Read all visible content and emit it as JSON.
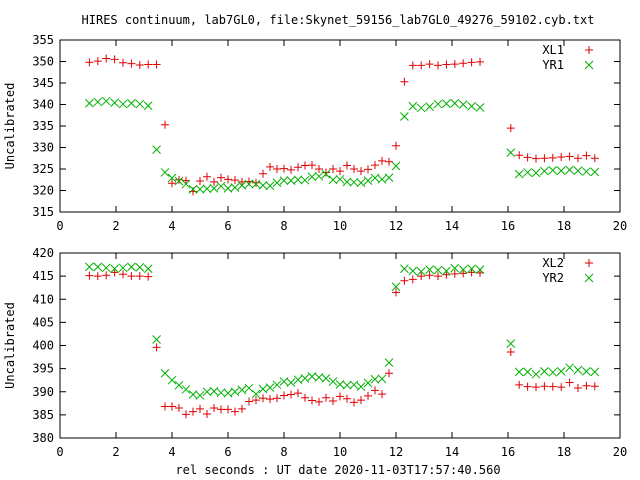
{
  "title": "HIRES continuum, lab7GL0, file:Skynet_59156_lab7GL0_49276_59102.cyb.txt",
  "xlabel": "rel seconds : UT date 2020-11-03T17:57:40.560",
  "colors": {
    "red": "#e00000",
    "green": "#00b000",
    "axis": "#000000",
    "grid": "#a0a0a0"
  },
  "chart_data": [
    {
      "type": "scatter",
      "ylabel": "Uncalibrated",
      "xlim": [
        0,
        20
      ],
      "ylim": [
        315,
        355
      ],
      "xticks": [
        0,
        2,
        4,
        6,
        8,
        10,
        12,
        14,
        16,
        18,
        20
      ],
      "yticks": [
        315,
        320,
        325,
        330,
        335,
        340,
        345,
        350,
        355
      ],
      "legend_position": "top-right",
      "series": [
        {
          "name": "XL1",
          "marker": "plus",
          "color": "#e00000",
          "points": [
            [
              1.05,
              349.8
            ],
            [
              1.35,
              350.1
            ],
            [
              1.65,
              350.7
            ],
            [
              1.95,
              350.5
            ],
            [
              2.25,
              349.7
            ],
            [
              2.55,
              349.5
            ],
            [
              2.85,
              349.2
            ],
            [
              3.15,
              349.3
            ],
            [
              3.45,
              349.3
            ],
            [
              3.75,
              335.3
            ],
            [
              4.0,
              321.7
            ],
            [
              4.25,
              322.5
            ],
            [
              4.5,
              322.3
            ],
            [
              4.75,
              319.8
            ],
            [
              5.0,
              322.2
            ],
            [
              5.25,
              323.2
            ],
            [
              5.5,
              322.0
            ],
            [
              5.75,
              323.0
            ],
            [
              6.0,
              322.6
            ],
            [
              6.25,
              322.4
            ],
            [
              6.5,
              322.0
            ],
            [
              6.75,
              322.1
            ],
            [
              7.0,
              321.8
            ],
            [
              7.25,
              323.9
            ],
            [
              7.5,
              325.5
            ],
            [
              7.75,
              325.0
            ],
            [
              8.0,
              325.1
            ],
            [
              8.25,
              324.8
            ],
            [
              8.5,
              325.4
            ],
            [
              8.75,
              325.8
            ],
            [
              9.0,
              325.9
            ],
            [
              9.25,
              325.0
            ],
            [
              9.5,
              324.2
            ],
            [
              9.75,
              325.0
            ],
            [
              10.0,
              324.5
            ],
            [
              10.25,
              325.8
            ],
            [
              10.5,
              325.0
            ],
            [
              10.75,
              324.5
            ],
            [
              11.0,
              324.9
            ],
            [
              11.25,
              325.9
            ],
            [
              11.5,
              326.9
            ],
            [
              11.75,
              326.7
            ],
            [
              12.0,
              330.4
            ],
            [
              12.3,
              345.3
            ],
            [
              12.6,
              349.1
            ],
            [
              12.9,
              349.1
            ],
            [
              13.2,
              349.4
            ],
            [
              13.5,
              349.1
            ],
            [
              13.8,
              349.3
            ],
            [
              14.1,
              349.4
            ],
            [
              14.4,
              349.6
            ],
            [
              14.7,
              349.8
            ],
            [
              15.0,
              349.9
            ],
            [
              16.1,
              334.5
            ],
            [
              16.4,
              328.2
            ],
            [
              16.7,
              327.7
            ],
            [
              17.0,
              327.4
            ],
            [
              17.3,
              327.5
            ],
            [
              17.6,
              327.6
            ],
            [
              17.9,
              327.8
            ],
            [
              18.2,
              327.9
            ],
            [
              18.5,
              327.5
            ],
            [
              18.8,
              328.1
            ],
            [
              19.1,
              327.5
            ]
          ]
        },
        {
          "name": "YR1",
          "marker": "cross",
          "color": "#00b000",
          "points": [
            [
              1.05,
              340.3
            ],
            [
              1.35,
              340.6
            ],
            [
              1.65,
              340.8
            ],
            [
              1.95,
              340.4
            ],
            [
              2.25,
              340.1
            ],
            [
              2.55,
              340.3
            ],
            [
              2.85,
              340.1
            ],
            [
              3.15,
              339.7
            ],
            [
              3.45,
              329.5
            ],
            [
              3.75,
              324.2
            ],
            [
              4.0,
              322.9
            ],
            [
              4.25,
              322.2
            ],
            [
              4.5,
              321.5
            ],
            [
              4.75,
              320.3
            ],
            [
              5.0,
              320.3
            ],
            [
              5.25,
              320.4
            ],
            [
              5.5,
              320.5
            ],
            [
              5.75,
              321.0
            ],
            [
              6.0,
              320.5
            ],
            [
              6.25,
              320.7
            ],
            [
              6.5,
              321.2
            ],
            [
              6.75,
              321.5
            ],
            [
              7.0,
              321.5
            ],
            [
              7.25,
              321.2
            ],
            [
              7.5,
              321.1
            ],
            [
              7.75,
              321.8
            ],
            [
              8.0,
              322.3
            ],
            [
              8.25,
              322.3
            ],
            [
              8.5,
              322.5
            ],
            [
              8.75,
              322.4
            ],
            [
              9.0,
              323.2
            ],
            [
              9.25,
              323.3
            ],
            [
              9.5,
              323.8
            ],
            [
              9.75,
              322.5
            ],
            [
              10.0,
              322.6
            ],
            [
              10.25,
              322.0
            ],
            [
              10.5,
              321.9
            ],
            [
              10.75,
              321.8
            ],
            [
              11.0,
              322.3
            ],
            [
              11.25,
              322.9
            ],
            [
              11.5,
              322.6
            ],
            [
              11.75,
              323.0
            ],
            [
              12.0,
              325.7
            ],
            [
              12.3,
              337.2
            ],
            [
              12.6,
              339.6
            ],
            [
              12.9,
              339.2
            ],
            [
              13.2,
              339.5
            ],
            [
              13.5,
              340.1
            ],
            [
              13.8,
              340.2
            ],
            [
              14.1,
              340.3
            ],
            [
              14.4,
              340.0
            ],
            [
              14.7,
              339.6
            ],
            [
              15.0,
              339.3
            ],
            [
              16.1,
              328.8
            ],
            [
              16.4,
              323.8
            ],
            [
              16.7,
              324.2
            ],
            [
              17.0,
              324.1
            ],
            [
              17.3,
              324.5
            ],
            [
              17.6,
              324.7
            ],
            [
              17.9,
              324.6
            ],
            [
              18.2,
              324.8
            ],
            [
              18.5,
              324.6
            ],
            [
              18.8,
              324.4
            ],
            [
              19.1,
              324.3
            ]
          ]
        }
      ]
    },
    {
      "type": "scatter",
      "ylabel": "Uncalibrated",
      "xlim": [
        0,
        20
      ],
      "ylim": [
        380,
        420
      ],
      "xticks": [
        0,
        2,
        4,
        6,
        8,
        10,
        12,
        14,
        16,
        18,
        20
      ],
      "yticks": [
        380,
        385,
        390,
        395,
        400,
        405,
        410,
        415,
        420
      ],
      "legend_position": "top-right",
      "series": [
        {
          "name": "XL2",
          "marker": "plus",
          "color": "#e00000",
          "points": [
            [
              1.05,
              415.1
            ],
            [
              1.35,
              415.0
            ],
            [
              1.65,
              415.2
            ],
            [
              1.95,
              415.8
            ],
            [
              2.25,
              415.4
            ],
            [
              2.55,
              415.0
            ],
            [
              2.85,
              415.0
            ],
            [
              3.15,
              414.9
            ],
            [
              3.45,
              399.6
            ],
            [
              3.75,
              386.8
            ],
            [
              4.0,
              386.8
            ],
            [
              4.25,
              386.5
            ],
            [
              4.5,
              385.1
            ],
            [
              4.75,
              385.7
            ],
            [
              5.0,
              386.3
            ],
            [
              5.25,
              385.2
            ],
            [
              5.5,
              386.5
            ],
            [
              5.75,
              386.2
            ],
            [
              6.0,
              386.2
            ],
            [
              6.25,
              385.7
            ],
            [
              6.5,
              386.3
            ],
            [
              6.75,
              387.9
            ],
            [
              7.0,
              388.2
            ],
            [
              7.25,
              388.6
            ],
            [
              7.5,
              388.4
            ],
            [
              7.75,
              388.6
            ],
            [
              8.0,
              389.2
            ],
            [
              8.25,
              389.4
            ],
            [
              8.5,
              389.7
            ],
            [
              8.75,
              388.7
            ],
            [
              9.0,
              388.1
            ],
            [
              9.25,
              387.8
            ],
            [
              9.5,
              388.7
            ],
            [
              9.75,
              388.0
            ],
            [
              10.0,
              389.0
            ],
            [
              10.25,
              388.5
            ],
            [
              10.5,
              387.7
            ],
            [
              10.75,
              388.2
            ],
            [
              11.0,
              389.1
            ],
            [
              11.25,
              390.3
            ],
            [
              11.5,
              389.5
            ],
            [
              11.75,
              394.0
            ],
            [
              12.0,
              411.5
            ],
            [
              12.3,
              414.0
            ],
            [
              12.6,
              414.3
            ],
            [
              12.9,
              415.0
            ],
            [
              13.2,
              415.2
            ],
            [
              13.5,
              415.0
            ],
            [
              13.8,
              415.3
            ],
            [
              14.1,
              415.5
            ],
            [
              14.4,
              415.6
            ],
            [
              14.7,
              415.8
            ],
            [
              15.0,
              415.7
            ],
            [
              16.1,
              398.6
            ],
            [
              16.4,
              391.5
            ],
            [
              16.7,
              391.1
            ],
            [
              17.0,
              391.0
            ],
            [
              17.3,
              391.2
            ],
            [
              17.6,
              391.1
            ],
            [
              17.9,
              391.0
            ],
            [
              18.2,
              392.0
            ],
            [
              18.5,
              390.8
            ],
            [
              18.8,
              391.3
            ],
            [
              19.1,
              391.2
            ]
          ]
        },
        {
          "name": "YR2",
          "marker": "cross",
          "color": "#00b000",
          "points": [
            [
              1.05,
              417.0
            ],
            [
              1.35,
              417.0
            ],
            [
              1.65,
              416.8
            ],
            [
              1.95,
              416.6
            ],
            [
              2.25,
              416.8
            ],
            [
              2.55,
              417.0
            ],
            [
              2.85,
              416.9
            ],
            [
              3.15,
              416.6
            ],
            [
              3.45,
              401.3
            ],
            [
              3.75,
              394.0
            ],
            [
              4.0,
              392.5
            ],
            [
              4.25,
              391.4
            ],
            [
              4.5,
              390.5
            ],
            [
              4.75,
              389.4
            ],
            [
              5.0,
              389.2
            ],
            [
              5.25,
              390.0
            ],
            [
              5.5,
              390.1
            ],
            [
              5.75,
              389.8
            ],
            [
              6.0,
              389.7
            ],
            [
              6.25,
              390.0
            ],
            [
              6.5,
              390.4
            ],
            [
              6.75,
              390.8
            ],
            [
              7.0,
              389.5
            ],
            [
              7.25,
              390.6
            ],
            [
              7.5,
              390.9
            ],
            [
              7.75,
              391.5
            ],
            [
              8.0,
              392.2
            ],
            [
              8.25,
              392.0
            ],
            [
              8.5,
              392.6
            ],
            [
              8.75,
              392.9
            ],
            [
              9.0,
              393.3
            ],
            [
              9.25,
              393.1
            ],
            [
              9.5,
              392.9
            ],
            [
              9.75,
              392.2
            ],
            [
              10.0,
              391.6
            ],
            [
              10.25,
              391.4
            ],
            [
              10.5,
              391.5
            ],
            [
              10.75,
              391.1
            ],
            [
              11.0,
              391.9
            ],
            [
              11.25,
              392.7
            ],
            [
              11.5,
              392.8
            ],
            [
              11.75,
              396.3
            ],
            [
              12.0,
              412.7
            ],
            [
              12.3,
              416.6
            ],
            [
              12.6,
              416.1
            ],
            [
              12.9,
              416.0
            ],
            [
              13.2,
              416.4
            ],
            [
              13.5,
              416.3
            ],
            [
              13.8,
              416.1
            ],
            [
              14.1,
              416.7
            ],
            [
              14.4,
              416.4
            ],
            [
              14.7,
              416.6
            ],
            [
              15.0,
              416.4
            ],
            [
              16.1,
              400.4
            ],
            [
              16.4,
              394.3
            ],
            [
              16.7,
              394.3
            ],
            [
              17.0,
              393.8
            ],
            [
              17.3,
              394.4
            ],
            [
              17.6,
              394.2
            ],
            [
              17.9,
              394.4
            ],
            [
              18.2,
              395.2
            ],
            [
              18.5,
              394.7
            ],
            [
              18.8,
              394.4
            ],
            [
              19.1,
              394.3
            ]
          ]
        }
      ]
    }
  ]
}
